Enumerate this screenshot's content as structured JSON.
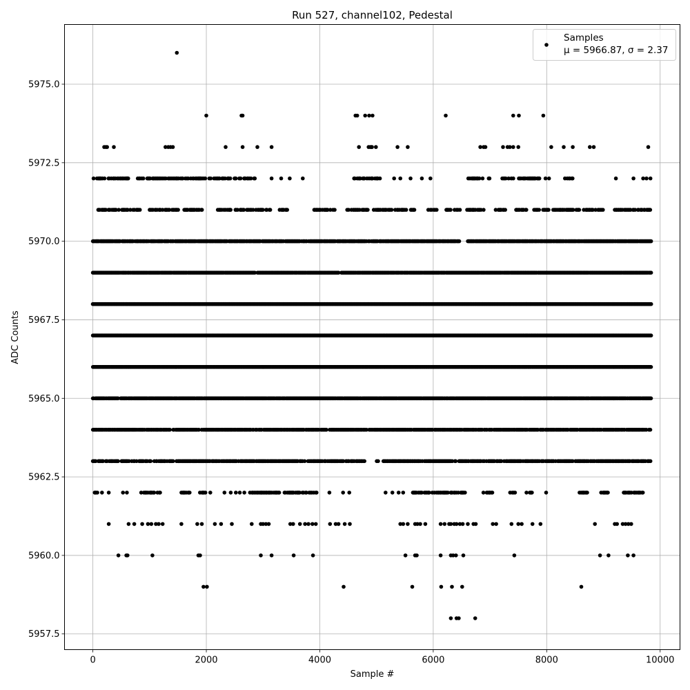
{
  "chart_data": {
    "type": "scatter",
    "title": "Run 527, channel102, Pedestal",
    "xlabel": "Sample #",
    "ylabel": "ADC Counts",
    "xlim": [
      -500,
      10350
    ],
    "ylim": [
      5957.0,
      5976.9
    ],
    "xticks": [
      0,
      2000,
      4000,
      6000,
      8000,
      10000
    ],
    "xtick_labels": [
      "0",
      "2000",
      "4000",
      "6000",
      "8000",
      "10000"
    ],
    "yticks": [
      5957.5,
      5960.0,
      5962.5,
      5965.0,
      5967.5,
      5970.0,
      5972.5,
      5975.0
    ],
    "ytick_labels": [
      "5957.5",
      "5960.0",
      "5962.5",
      "5965.0",
      "5967.5",
      "5970.0",
      "5972.5",
      "5975.0"
    ],
    "grid": true,
    "legend_position": "top-right",
    "marker_color": "#000000",
    "legend": {
      "series_name": "Samples",
      "stats_prefix": "μ = 5966.87, ",
      "stats_sigma": "σ = 2.37"
    },
    "levels": [
      {
        "y": 5976,
        "x": [
          1480
        ]
      },
      {
        "y": 5974,
        "x": [
          2000,
          2620,
          2640,
          4630,
          4660,
          4800,
          4870,
          4930,
          6220,
          7410,
          7510,
          7940
        ]
      },
      {
        "y": 5973,
        "x": [
          200,
          230,
          250,
          370,
          1280,
          1330,
          1370,
          1410,
          2340,
          2640,
          2900,
          3150,
          4690,
          4860,
          4890,
          4910,
          4920,
          4990,
          5370,
          5550,
          6830,
          6890,
          6920,
          7230,
          7310,
          7350,
          7410,
          7500,
          8080,
          8300,
          8460,
          8760,
          8830,
          9790
        ]
      },
      {
        "y": 5972,
        "dense": [
          [
            0,
            2860
          ],
          [
            4140,
            4200
          ],
          [
            4580,
            5070
          ],
          [
            6620,
            7000
          ],
          [
            7220,
            7450
          ],
          [
            7500,
            7880
          ],
          [
            7980,
            8100
          ],
          [
            8300,
            8480
          ]
        ],
        "density": 0.45,
        "extra": [
          3150,
          3320,
          3470,
          3700,
          5310,
          5420,
          5600,
          5800,
          5950,
          9220,
          9530,
          9700,
          9760,
          9830
        ]
      },
      {
        "y": 5971,
        "dense": [
          [
            60,
            850
          ],
          [
            1000,
            1950
          ],
          [
            2190,
            3130
          ],
          [
            3280,
            3430
          ],
          [
            3900,
            4270
          ],
          [
            4460,
            5270
          ],
          [
            5330,
            5680
          ],
          [
            5890,
            6060
          ],
          [
            6220,
            6490
          ],
          [
            6600,
            6910
          ],
          [
            7100,
            7300
          ],
          [
            7460,
            7650
          ],
          [
            7780,
            9000
          ],
          [
            9200,
            9830
          ]
        ],
        "density": 0.55
      },
      {
        "y": 5970,
        "dense": [
          [
            0,
            9840
          ]
        ],
        "density": 0.85,
        "gaps": [
          [
            6460,
            6610
          ]
        ]
      },
      {
        "y": 5969,
        "dense": [
          [
            0,
            9840
          ]
        ],
        "density": 0.95
      },
      {
        "y": 5968,
        "dense": [
          [
            0,
            9840
          ]
        ],
        "density": 1.0
      },
      {
        "y": 5967,
        "dense": [
          [
            0,
            9840
          ]
        ],
        "density": 1.0
      },
      {
        "y": 5966,
        "dense": [
          [
            0,
            9840
          ]
        ],
        "density": 1.0
      },
      {
        "y": 5965,
        "dense": [
          [
            0,
            9840
          ]
        ],
        "density": 0.95
      },
      {
        "y": 5964,
        "dense": [
          [
            0,
            9840
          ]
        ],
        "density": 0.8
      },
      {
        "y": 5963,
        "dense": [
          [
            0,
            9840
          ]
        ],
        "density": 0.7,
        "gaps": [
          [
            4800,
            5000
          ],
          [
            5030,
            5120
          ]
        ]
      },
      {
        "y": 5962,
        "dense": [
          [
            30,
            100
          ],
          [
            850,
            1190
          ],
          [
            1560,
            1720
          ],
          [
            1840,
            2000
          ],
          [
            2770,
            3290
          ],
          [
            3380,
            3950
          ],
          [
            5640,
            5950
          ],
          [
            5960,
            6560
          ],
          [
            6860,
            7040
          ],
          [
            7320,
            7440
          ],
          [
            7620,
            7740
          ],
          [
            8580,
            8720
          ],
          [
            8960,
            9090
          ],
          [
            9360,
            9700
          ]
        ],
        "density": 0.55,
        "extra": [
          160,
          280,
          530,
          600,
          2070,
          2320,
          2430,
          2520,
          2590,
          2670,
          4170,
          4410,
          4520,
          5160,
          5280,
          5390,
          5470,
          7990
        ]
      },
      {
        "y": 5961,
        "extra": [
          280,
          630,
          730,
          870,
          970,
          1030,
          1110,
          1160,
          1230,
          1560,
          1840,
          1920,
          2150,
          2260,
          2450,
          2800,
          2960,
          3000,
          3050,
          3100,
          3480,
          3530,
          3650,
          3740,
          3800,
          3870,
          3930,
          4180,
          4280,
          4330,
          4440,
          4530,
          5420,
          5470,
          5550,
          5680,
          5720,
          5770,
          5860,
          6130,
          6200,
          6280,
          6310,
          6370,
          6410,
          6470,
          6520,
          6610,
          6710,
          6750,
          7050,
          7110,
          7380,
          7500,
          7560,
          7750,
          7890,
          8850,
          9200,
          9240,
          9340,
          9390,
          9440,
          9490
        ]
      },
      {
        "y": 5960,
        "extra": [
          450,
          590,
          610,
          1050,
          1860,
          1890,
          2960,
          3150,
          3540,
          3880,
          5510,
          5680,
          5710,
          6130,
          6310,
          6350,
          6400,
          6530,
          7430,
          8940,
          9090,
          9430,
          9530
        ]
      },
      {
        "y": 5959,
        "extra": [
          1950,
          2010,
          4420,
          5630,
          6140,
          6330,
          6510,
          8610
        ]
      },
      {
        "y": 5958,
        "extra": [
          6310,
          6410,
          6450,
          6740
        ]
      }
    ]
  }
}
